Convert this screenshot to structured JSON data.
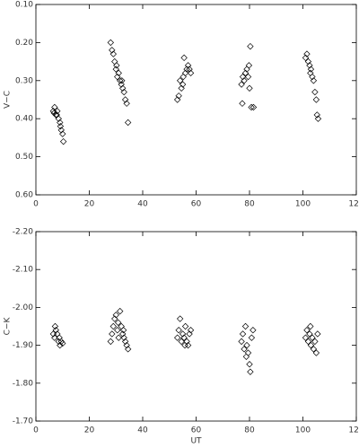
{
  "chart_data": [
    {
      "type": "scatter",
      "ylabel": "V−C",
      "y_inverted": true,
      "color": "#000000",
      "marker": "open-diamond",
      "xlim": [
        0,
        120
      ],
      "xticks": [
        0,
        20,
        40,
        60,
        80,
        100,
        120
      ],
      "ylim": [
        0.1,
        0.6
      ],
      "yticks": [
        {
          "value": 0.1,
          "label": "0.10"
        },
        {
          "value": 0.2,
          "label": "0.20"
        },
        {
          "value": 0.3,
          "label": "0.30"
        },
        {
          "value": 0.4,
          "label": "0.40"
        },
        {
          "value": 0.5,
          "label": "0.50"
        },
        {
          "value": 0.6,
          "label": "0.60"
        }
      ],
      "x": [
        6.5,
        7,
        7.5,
        8,
        8.5,
        9,
        9.5,
        10,
        10.3,
        7.8,
        9.2,
        6.8,
        28,
        28.5,
        29,
        29.5,
        30,
        30.5,
        31,
        31.5,
        32,
        32.5,
        33,
        33.5,
        34,
        34.5,
        30.2,
        32.2,
        53,
        53.5,
        54,
        54.5,
        55,
        55.5,
        56,
        56.5,
        57,
        57.5,
        58,
        55.2,
        77,
        77.5,
        78,
        78.5,
        79,
        79.5,
        80,
        80.3,
        80.7,
        81.5,
        77.3,
        79.8,
        101,
        101.5,
        102,
        102.5,
        103,
        103.5,
        104,
        104.5,
        105,
        105.3,
        105.7,
        102.8
      ],
      "values": [
        0.38,
        0.37,
        0.39,
        0.38,
        0.4,
        0.41,
        0.43,
        0.44,
        0.46,
        0.39,
        0.42,
        0.385,
        0.2,
        0.22,
        0.23,
        0.25,
        0.27,
        0.29,
        0.28,
        0.3,
        0.31,
        0.32,
        0.33,
        0.35,
        0.36,
        0.41,
        0.26,
        0.3,
        0.35,
        0.34,
        0.3,
        0.32,
        0.31,
        0.24,
        0.28,
        0.27,
        0.26,
        0.27,
        0.28,
        0.29,
        0.31,
        0.29,
        0.3,
        0.28,
        0.27,
        0.29,
        0.32,
        0.21,
        0.37,
        0.37,
        0.36,
        0.26,
        0.24,
        0.23,
        0.25,
        0.26,
        0.27,
        0.29,
        0.3,
        0.33,
        0.35,
        0.39,
        0.4,
        0.28
      ]
    },
    {
      "type": "scatter",
      "ylabel": "C−K",
      "xlabel": "UT",
      "y_inverted": true,
      "color": "#000000",
      "marker": "open-diamond",
      "xlim": [
        0,
        120
      ],
      "xticks": [
        0,
        20,
        40,
        60,
        80,
        100,
        120
      ],
      "ylim": [
        -2.2,
        -1.7
      ],
      "yticks": [
        {
          "value": -1.7,
          "label": "-1.70"
        },
        {
          "value": -1.8,
          "label": "-1.80"
        },
        {
          "value": -1.9,
          "label": "-1.90"
        },
        {
          "value": -2.0,
          "label": "-2.00"
        },
        {
          "value": -2.1,
          "label": "-2.10"
        },
        {
          "value": -2.2,
          "label": "-2.20"
        }
      ],
      "x": [
        6.5,
        7,
        7.5,
        8,
        8.5,
        9,
        9.5,
        10,
        7.2,
        8.8,
        28,
        28.5,
        29,
        29.5,
        30,
        30.5,
        31,
        31.5,
        32,
        32.5,
        33,
        33.5,
        34,
        34.5,
        30.8,
        32.8,
        53,
        53.5,
        54,
        54.5,
        55,
        55.5,
        56,
        56.5,
        57,
        57.5,
        58,
        55.8,
        77,
        77.5,
        78,
        78.5,
        79,
        79.5,
        80,
        80.3,
        80.8,
        81.3,
        78.8,
        101,
        101.5,
        102,
        102.5,
        103,
        103.5,
        104,
        104.5,
        105,
        105.5,
        102.8
      ],
      "values": [
        -1.93,
        -1.92,
        -1.94,
        -1.93,
        -1.91,
        -1.9,
        -1.91,
        -1.905,
        -1.95,
        -1.92,
        -1.91,
        -1.93,
        -1.95,
        -1.97,
        -1.98,
        -1.94,
        -1.92,
        -1.99,
        -1.95,
        -1.93,
        -1.92,
        -1.91,
        -1.9,
        -1.89,
        -1.96,
        -1.94,
        -1.92,
        -1.94,
        -1.97,
        -1.91,
        -1.93,
        -1.92,
        -1.95,
        -1.91,
        -1.9,
        -1.93,
        -1.94,
        -1.9,
        -1.91,
        -1.93,
        -1.89,
        -1.95,
        -1.9,
        -1.88,
        -1.85,
        -1.83,
        -1.92,
        -1.94,
        -1.87,
        -1.92,
        -1.94,
        -1.91,
        -1.93,
        -1.9,
        -1.92,
        -1.89,
        -1.91,
        -1.88,
        -1.93,
        -1.95
      ]
    }
  ]
}
